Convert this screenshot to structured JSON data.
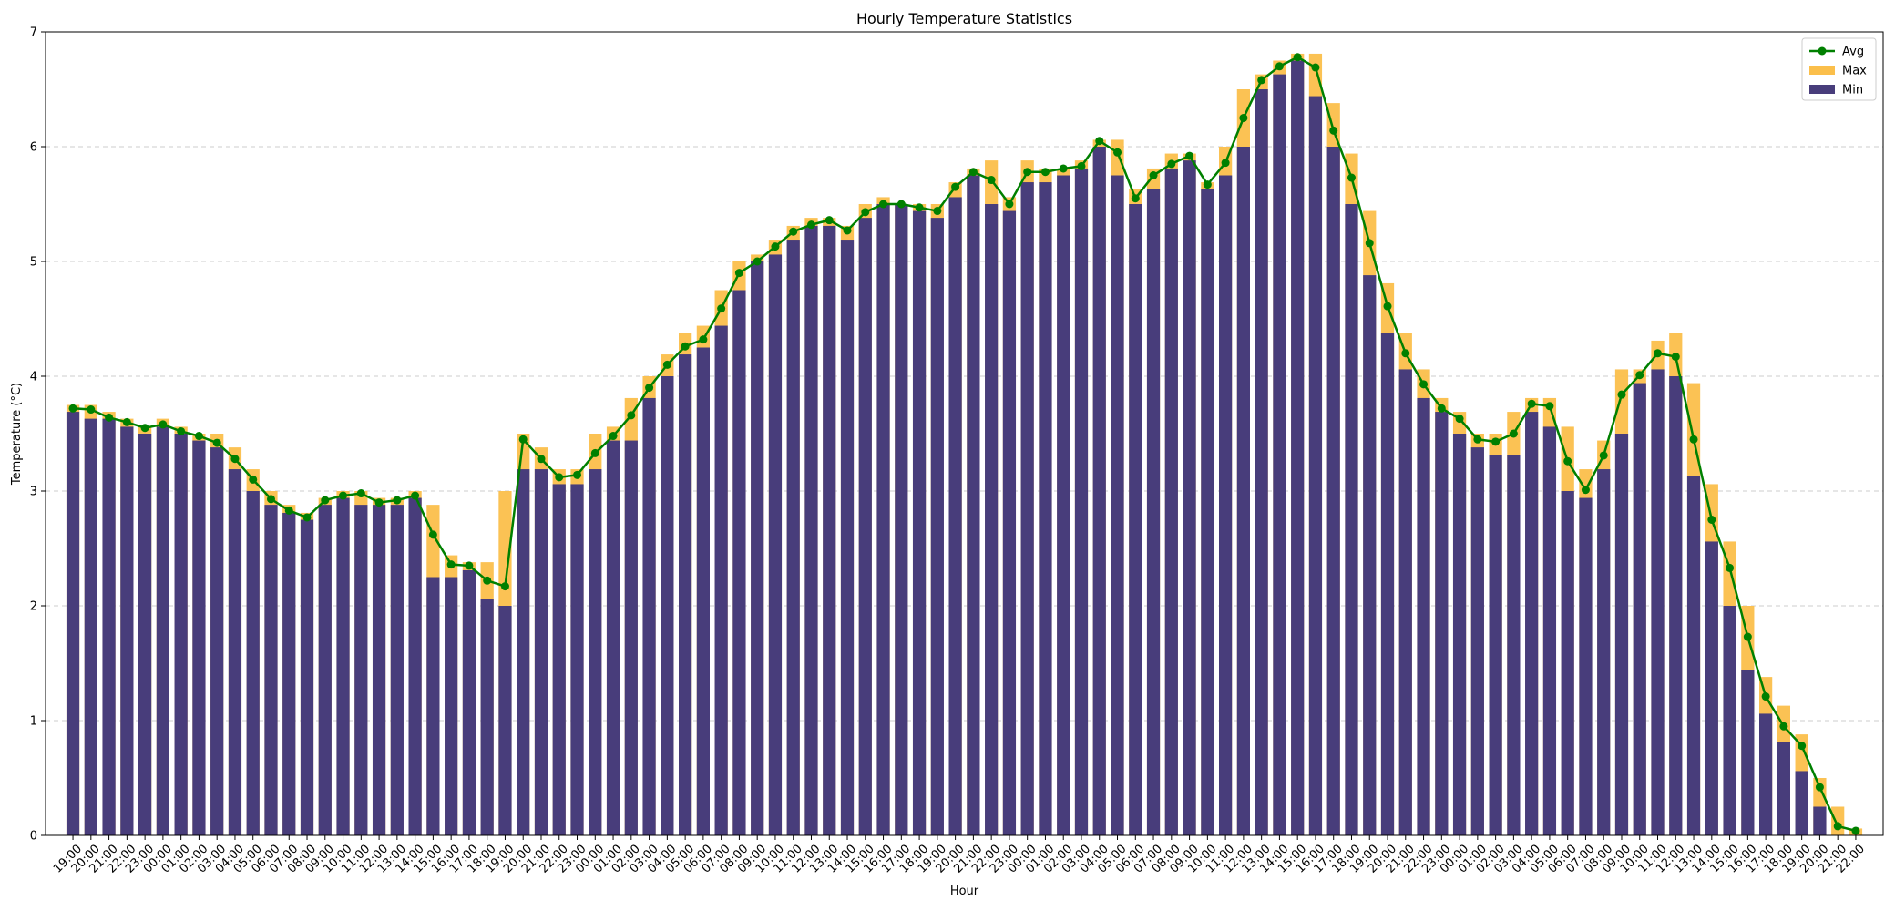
{
  "chart_data": {
    "type": "bar",
    "title": "Hourly Temperature Statistics",
    "xlabel": "Hour",
    "ylabel": "Temperature (°C)",
    "ylim": [
      0,
      7
    ],
    "yticks": [
      0,
      1,
      2,
      3,
      4,
      5,
      6,
      7
    ],
    "grid": "y-dashed",
    "legend_position": "top-right",
    "colors": {
      "min": "#483D7B",
      "max": "#FBBF4B",
      "avg": "#008000"
    },
    "categories": [
      "19:00",
      "20:00",
      "21:00",
      "22:00",
      "23:00",
      "00:00",
      "01:00",
      "02:00",
      "03:00",
      "04:00",
      "05:00",
      "06:00",
      "07:00",
      "08:00",
      "09:00",
      "10:00",
      "11:00",
      "12:00",
      "13:00",
      "14:00",
      "15:00",
      "16:00",
      "17:00",
      "18:00",
      "19:00",
      "20:00",
      "21:00",
      "22:00",
      "23:00",
      "00:00",
      "01:00",
      "02:00",
      "03:00",
      "04:00",
      "05:00",
      "06:00",
      "07:00",
      "08:00",
      "09:00",
      "10:00",
      "11:00",
      "12:00",
      "13:00",
      "14:00",
      "15:00",
      "16:00",
      "17:00",
      "18:00",
      "19:00",
      "20:00",
      "21:00",
      "22:00",
      "23:00",
      "00:00",
      "01:00",
      "02:00",
      "03:00",
      "04:00",
      "05:00",
      "06:00",
      "07:00",
      "08:00",
      "09:00",
      "10:00",
      "11:00",
      "12:00",
      "13:00",
      "14:00",
      "15:00",
      "16:00",
      "17:00",
      "18:00",
      "19:00",
      "20:00",
      "21:00",
      "22:00",
      "23:00",
      "00:00",
      "01:00",
      "02:00",
      "03:00",
      "04:00",
      "05:00",
      "06:00",
      "07:00",
      "08:00",
      "09:00",
      "10:00",
      "11:00",
      "12:00",
      "13:00",
      "14:00",
      "15:00",
      "16:00",
      "17:00",
      "18:00",
      "19:00",
      "20:00",
      "21:00",
      "22:00"
    ],
    "series": [
      {
        "name": "Min",
        "type": "bar",
        "values": [
          3.69,
          3.63,
          3.63,
          3.56,
          3.5,
          3.56,
          3.5,
          3.44,
          3.38,
          3.19,
          3.0,
          2.88,
          2.81,
          2.75,
          2.88,
          2.94,
          2.88,
          2.88,
          2.88,
          2.94,
          2.25,
          2.25,
          2.31,
          2.06,
          2.0,
          3.19,
          3.19,
          3.06,
          3.06,
          3.19,
          3.44,
          3.44,
          3.81,
          4.0,
          4.19,
          4.25,
          4.44,
          4.75,
          5.0,
          5.06,
          5.19,
          5.31,
          5.31,
          5.19,
          5.38,
          5.5,
          5.5,
          5.44,
          5.38,
          5.56,
          5.75,
          5.5,
          5.44,
          5.69,
          5.69,
          5.75,
          5.81,
          6.0,
          5.75,
          5.5,
          5.63,
          5.81,
          5.88,
          5.63,
          5.75,
          6.0,
          6.5,
          6.63,
          6.75,
          6.44,
          6.0,
          5.5,
          4.88,
          4.38,
          4.06,
          3.81,
          3.69,
          3.5,
          3.38,
          3.31,
          3.31,
          3.69,
          3.56,
          3.0,
          2.94,
          3.19,
          3.5,
          3.94,
          4.06,
          4.0,
          3.13,
          2.56,
          2.0,
          1.44,
          1.06,
          0.81,
          0.56,
          0.25,
          0.0,
          0.0
        ]
      },
      {
        "name": "Max",
        "type": "bar",
        "values": [
          3.75,
          3.75,
          3.69,
          3.63,
          3.56,
          3.63,
          3.56,
          3.5,
          3.5,
          3.38,
          3.19,
          3.0,
          2.88,
          2.81,
          2.94,
          3.0,
          3.0,
          2.94,
          2.94,
          3.0,
          2.88,
          2.44,
          2.38,
          2.38,
          3.0,
          3.5,
          3.38,
          3.19,
          3.19,
          3.5,
          3.56,
          3.81,
          4.0,
          4.19,
          4.38,
          4.44,
          4.75,
          5.0,
          5.06,
          5.19,
          5.31,
          5.38,
          5.38,
          5.31,
          5.5,
          5.56,
          5.5,
          5.5,
          5.5,
          5.69,
          5.81,
          5.88,
          5.56,
          5.88,
          5.81,
          5.81,
          5.88,
          6.06,
          6.06,
          5.63,
          5.81,
          5.94,
          5.94,
          5.69,
          6.0,
          6.5,
          6.63,
          6.75,
          6.81,
          6.81,
          6.38,
          5.94,
          5.44,
          4.81,
          4.38,
          4.06,
          3.81,
          3.69,
          3.5,
          3.5,
          3.69,
          3.81,
          3.81,
          3.56,
          3.19,
          3.44,
          4.06,
          4.06,
          4.31,
          4.38,
          3.94,
          3.06,
          2.56,
          2.0,
          1.38,
          1.13,
          0.88,
          0.5,
          0.25,
          0.06
        ]
      },
      {
        "name": "Avg",
        "type": "line",
        "values": [
          3.72,
          3.71,
          3.64,
          3.6,
          3.55,
          3.58,
          3.52,
          3.48,
          3.42,
          3.28,
          3.1,
          2.93,
          2.83,
          2.77,
          2.92,
          2.96,
          2.98,
          2.9,
          2.92,
          2.96,
          2.62,
          2.36,
          2.35,
          2.22,
          2.17,
          3.45,
          3.28,
          3.12,
          3.14,
          3.33,
          3.48,
          3.66,
          3.9,
          4.1,
          4.26,
          4.32,
          4.59,
          4.9,
          5.0,
          5.13,
          5.26,
          5.32,
          5.36,
          5.27,
          5.43,
          5.5,
          5.5,
          5.47,
          5.44,
          5.65,
          5.78,
          5.71,
          5.5,
          5.78,
          5.78,
          5.81,
          5.83,
          6.05,
          5.95,
          5.55,
          5.75,
          5.85,
          5.92,
          5.67,
          5.86,
          6.25,
          6.58,
          6.7,
          6.78,
          6.69,
          6.14,
          5.73,
          5.16,
          4.61,
          4.2,
          3.93,
          3.72,
          3.63,
          3.45,
          3.43,
          3.5,
          3.76,
          3.74,
          3.26,
          3.01,
          3.31,
          3.84,
          4.01,
          4.2,
          4.17,
          3.45,
          2.75,
          2.33,
          1.73,
          1.21,
          0.95,
          0.78,
          0.42,
          0.08,
          0.04
        ]
      }
    ]
  }
}
